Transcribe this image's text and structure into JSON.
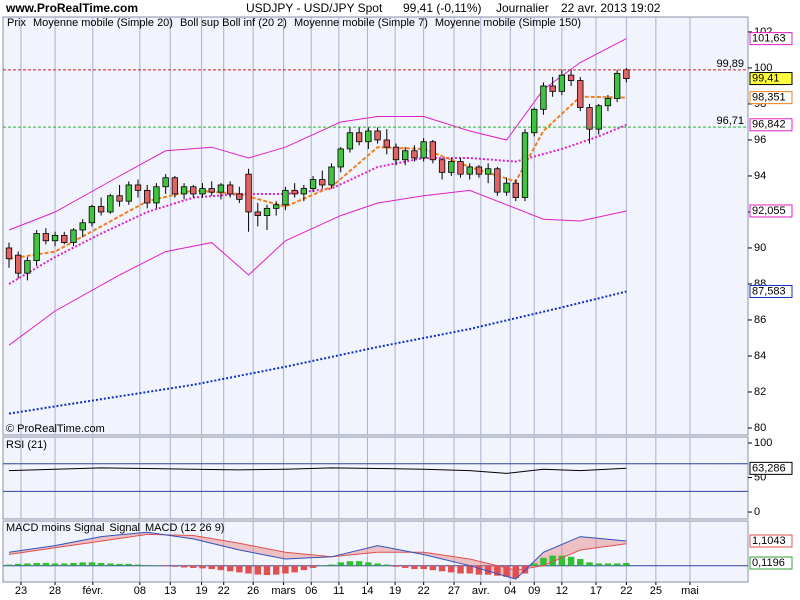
{
  "header": {
    "site": "www.ProRealTime.com",
    "symbol": "USDJPY - USD/JPY Spot",
    "quote": "99,41 (-0,11%)",
    "period": "Journalier",
    "datetime": "22 avr. 2013 19:02"
  },
  "chart_data": [
    {
      "type": "candlestick",
      "legend_label": "Prix",
      "copyright": "© ProRealTime.com",
      "up_color": "#3ec43e",
      "down_color": "#e06464",
      "xlim": [
        -0.65,
        80.2
      ],
      "ylim": [
        79.61,
        102.83
      ],
      "yticks": [
        80,
        82,
        84,
        86,
        88,
        90,
        92,
        94,
        96,
        98,
        100,
        102
      ],
      "ohlc": [
        [
          90.0,
          90.3,
          88.9,
          89.4
        ],
        [
          89.6,
          89.8,
          88.3,
          88.6
        ],
        [
          88.6,
          89.5,
          88.2,
          89.3
        ],
        [
          89.3,
          91.0,
          89.0,
          90.8
        ],
        [
          90.8,
          91.1,
          90.2,
          90.4
        ],
        [
          90.4,
          90.9,
          90.1,
          90.7
        ],
        [
          90.7,
          90.9,
          90.2,
          90.3
        ],
        [
          90.3,
          91.1,
          90.1,
          91.0
        ],
        [
          91.0,
          91.6,
          90.6,
          91.4
        ],
        [
          91.4,
          92.4,
          91.2,
          92.3
        ],
        [
          92.3,
          92.8,
          91.8,
          92.0
        ],
        [
          92.0,
          93.0,
          91.9,
          92.9
        ],
        [
          92.9,
          93.5,
          92.3,
          92.6
        ],
        [
          92.6,
          93.7,
          92.4,
          93.5
        ],
        [
          93.5,
          93.8,
          92.8,
          93.2
        ],
        [
          93.2,
          93.5,
          92.2,
          92.5
        ],
        [
          92.5,
          93.6,
          92.2,
          93.4
        ],
        [
          93.4,
          94.1,
          93.0,
          93.9
        ],
        [
          93.9,
          94.0,
          92.8,
          93.0
        ],
        [
          93.0,
          93.6,
          92.7,
          93.4
        ],
        [
          93.4,
          93.5,
          92.8,
          93.0
        ],
        [
          93.0,
          93.6,
          92.8,
          93.3
        ],
        [
          93.3,
          93.7,
          92.9,
          93.1
        ],
        [
          93.1,
          93.6,
          92.7,
          93.5
        ],
        [
          93.5,
          93.7,
          92.8,
          93.0
        ],
        [
          93.0,
          93.4,
          92.5,
          92.7
        ],
        [
          94.1,
          94.4,
          90.9,
          92.0
        ],
        [
          92.0,
          92.5,
          91.2,
          91.8
        ],
        [
          91.8,
          92.4,
          91.0,
          92.2
        ],
        [
          92.2,
          92.6,
          91.8,
          92.4
        ],
        [
          92.4,
          93.4,
          92.1,
          93.2
        ],
        [
          93.2,
          93.6,
          92.8,
          93.0
        ],
        [
          93.0,
          93.5,
          92.6,
          93.3
        ],
        [
          93.3,
          94.0,
          93.1,
          93.8
        ],
        [
          93.8,
          94.3,
          93.3,
          93.5
        ],
        [
          93.5,
          94.7,
          93.3,
          94.5
        ],
        [
          94.5,
          95.6,
          94.2,
          95.5
        ],
        [
          95.5,
          96.7,
          95.3,
          96.4
        ],
        [
          96.4,
          96.7,
          95.7,
          95.9
        ],
        [
          95.9,
          96.7,
          95.5,
          96.5
        ],
        [
          96.5,
          96.7,
          95.8,
          96.0
        ],
        [
          96.0,
          96.6,
          95.2,
          95.6
        ],
        [
          95.6,
          95.8,
          94.6,
          94.9
        ],
        [
          94.9,
          95.6,
          94.6,
          95.4
        ],
        [
          95.4,
          95.7,
          94.8,
          95.0
        ],
        [
          95.0,
          96.1,
          94.8,
          95.9
        ],
        [
          95.9,
          96.0,
          94.7,
          94.9
        ],
        [
          94.9,
          95.0,
          93.8,
          94.2
        ],
        [
          94.2,
          95.0,
          94.0,
          94.8
        ],
        [
          94.8,
          95.0,
          93.9,
          94.1
        ],
        [
          94.1,
          94.7,
          93.8,
          94.5
        ],
        [
          94.5,
          94.6,
          93.9,
          94.1
        ],
        [
          94.1,
          94.7,
          93.6,
          94.4
        ],
        [
          94.4,
          94.5,
          92.9,
          93.1
        ],
        [
          93.1,
          93.9,
          92.9,
          93.6
        ],
        [
          93.6,
          93.8,
          92.6,
          92.8
        ],
        [
          92.8,
          96.6,
          92.6,
          96.4
        ],
        [
          96.4,
          97.8,
          96.2,
          97.7
        ],
        [
          97.7,
          99.2,
          97.4,
          99.0
        ],
        [
          99.0,
          99.5,
          98.4,
          98.7
        ],
        [
          98.7,
          99.9,
          98.5,
          99.6
        ],
        [
          99.6,
          99.9,
          99.0,
          99.3
        ],
        [
          99.3,
          99.5,
          97.6,
          97.8
        ],
        [
          97.8,
          98.0,
          95.8,
          96.6
        ],
        [
          96.6,
          98.0,
          96.3,
          97.9
        ],
        [
          97.9,
          98.5,
          97.6,
          98.3
        ],
        [
          98.3,
          99.9,
          98.1,
          99.7
        ],
        [
          99.9,
          100.0,
          99.2,
          99.41
        ]
      ],
      "series": [
        {
          "name": "Moyenne mobile (Simple 20)",
          "color": "#e020c8",
          "style": "dotted",
          "x": [
            0,
            5,
            10,
            15,
            20,
            25,
            30,
            35,
            40,
            45,
            50,
            55,
            60,
            64,
            67
          ],
          "values": [
            88.0,
            89.5,
            90.8,
            92.0,
            92.8,
            93.0,
            93.0,
            93.3,
            94.5,
            95.0,
            95.0,
            94.8,
            95.5,
            96.2,
            96.842
          ]
        },
        {
          "name": "Boll sup Boll inf (20 2)",
          "color": "#e020c8",
          "style": "solid",
          "x": [
            0,
            5,
            12,
            17,
            22,
            26,
            30,
            36,
            40,
            45,
            50,
            54,
            58,
            62,
            67
          ],
          "upper": [
            91.0,
            92.0,
            94.0,
            95.4,
            95.6,
            95.0,
            95.6,
            97.0,
            97.3,
            97.3,
            96.5,
            96.0,
            98.8,
            100.3,
            101.63
          ],
          "lower": [
            84.6,
            86.5,
            88.5,
            89.8,
            90.3,
            88.5,
            90.4,
            91.8,
            92.5,
            92.9,
            93.2,
            92.4,
            91.6,
            91.5,
            92.055
          ]
        },
        {
          "name": "Moyenne mobile (Simple 7)",
          "color": "#f08020",
          "style": "dashed",
          "x": [
            0,
            5,
            10,
            15,
            20,
            25,
            30,
            35,
            40,
            45,
            50,
            55,
            58,
            62,
            67
          ],
          "values": [
            89.4,
            89.8,
            91.2,
            92.6,
            93.2,
            93.0,
            92.3,
            93.4,
            95.6,
            95.5,
            94.5,
            93.7,
            96.5,
            98.4,
            98.351
          ]
        },
        {
          "name": "Moyenne mobile (Simple 150)",
          "color": "#1030c0",
          "style": "dotted",
          "x": [
            0,
            10,
            20,
            30,
            40,
            50,
            60,
            67
          ],
          "values": [
            80.8,
            81.6,
            82.4,
            83.4,
            84.5,
            85.5,
            86.7,
            87.583
          ]
        }
      ],
      "levels": [
        {
          "value": 99.89,
          "label": "99,89",
          "color": "#d02020"
        },
        {
          "value": 96.71,
          "label": "96,71",
          "color": "#30b030"
        }
      ],
      "last_labels": [
        {
          "value": 101.63,
          "label": "101,63",
          "color": "#e020c8",
          "bg": "#ffffff"
        },
        {
          "value": 99.41,
          "label": "99,41",
          "color": "#000000",
          "bg": "#ffff40"
        },
        {
          "value": 98.351,
          "label": "98,351",
          "color": "#f08020",
          "bg": "#ffffff"
        },
        {
          "value": 96.842,
          "label": "96,842",
          "color": "#e020c8",
          "bg": "#ffffff"
        },
        {
          "value": 92.055,
          "label": "92,055",
          "color": "#e020c8",
          "bg": "#ffffff"
        },
        {
          "value": 87.583,
          "label": "87,583",
          "color": "#1030c0",
          "bg": "#ffffff"
        }
      ]
    },
    {
      "type": "line",
      "title": "RSI (21)",
      "color": "#000000",
      "xlim": [
        -0.65,
        80.2
      ],
      "ylim": [
        -10.1,
        108.7
      ],
      "yticks": [
        0,
        50,
        100
      ],
      "levels": [
        30,
        70
      ],
      "x": [
        0,
        5,
        10,
        15,
        20,
        25,
        30,
        35,
        40,
        45,
        50,
        54,
        58,
        62,
        67
      ],
      "values": [
        60,
        62,
        64,
        63,
        62,
        61,
        62,
        64,
        63,
        62,
        60,
        56,
        62,
        60,
        63.286
      ],
      "last_label": {
        "value": 63.286,
        "label": "63,286"
      }
    },
    {
      "type": "macd",
      "xlim": [
        -0.65,
        80.2
      ],
      "ylim": [
        -0.73,
        2.0
      ],
      "histogram": {
        "name": "MACD moins Signal",
        "up_color": "#30c030",
        "down_color": "#e05050",
        "values": [
          0.05,
          0.08,
          0.1,
          0.12,
          0.12,
          0.1,
          0.1,
          0.12,
          0.15,
          0.15,
          0.12,
          0.1,
          0.08,
          0.08,
          0.05,
          0.02,
          0.0,
          -0.02,
          -0.05,
          -0.08,
          -0.1,
          -0.12,
          -0.15,
          -0.2,
          -0.25,
          -0.3,
          -0.35,
          -0.4,
          -0.42,
          -0.4,
          -0.35,
          -0.3,
          -0.2,
          -0.1,
          0.0,
          0.05,
          0.15,
          0.2,
          0.2,
          0.15,
          0.1,
          0.05,
          -0.05,
          -0.1,
          -0.15,
          -0.15,
          -0.2,
          -0.25,
          -0.3,
          -0.35,
          -0.35,
          -0.4,
          -0.4,
          -0.45,
          -0.5,
          -0.55,
          -0.35,
          0.1,
          0.35,
          0.45,
          0.45,
          0.4,
          0.3,
          0.15,
          0.1,
          0.1,
          0.1,
          0.1196
        ]
      },
      "series": [
        {
          "name": "Signal",
          "color": "#e05050",
          "x": [
            0,
            5,
            10,
            15,
            20,
            25,
            30,
            35,
            40,
            45,
            50,
            55,
            58,
            62,
            67
          ],
          "values": [
            0.5,
            0.8,
            1.1,
            1.4,
            1.35,
            1.0,
            0.6,
            0.4,
            0.6,
            0.6,
            0.3,
            -0.2,
            0.0,
            0.7,
            0.985
          ]
        },
        {
          "name": "MACD (12 26 9)",
          "color": "#3050c0",
          "x": [
            0,
            5,
            10,
            15,
            20,
            25,
            30,
            35,
            40,
            45,
            50,
            55,
            58,
            62,
            67
          ],
          "values": [
            0.6,
            0.9,
            1.3,
            1.5,
            1.2,
            0.7,
            0.3,
            0.4,
            0.9,
            0.5,
            0.0,
            -0.6,
            0.6,
            1.3,
            1.1043
          ]
        }
      ],
      "last_labels": [
        {
          "value": 1.1043,
          "label": "1,1043",
          "color": "#e05050"
        },
        {
          "value": 0.1196,
          "label": "0,1196",
          "color": "#30a030"
        }
      ],
      "xticks": [
        {
          "value": 1.3,
          "label": "23"
        },
        {
          "value": 5.0,
          "label": "28"
        },
        {
          "value": 9.1,
          "label": "févr."
        },
        {
          "value": 14.2,
          "label": "08"
        },
        {
          "value": 17.5,
          "label": "13"
        },
        {
          "value": 20.9,
          "label": "19"
        },
        {
          "value": 23.3,
          "label": "22"
        },
        {
          "value": 26.5,
          "label": "26"
        },
        {
          "value": 29.8,
          "label": "mars"
        },
        {
          "value": 32.8,
          "label": "06"
        },
        {
          "value": 35.8,
          "label": "11"
        },
        {
          "value": 38.9,
          "label": "14"
        },
        {
          "value": 41.9,
          "label": "19"
        },
        {
          "value": 45.0,
          "label": "22"
        },
        {
          "value": 48.3,
          "label": "27"
        },
        {
          "value": 51.2,
          "label": "avr."
        },
        {
          "value": 54.4,
          "label": "04"
        },
        {
          "value": 57.0,
          "label": "09"
        },
        {
          "value": 60.0,
          "label": "12"
        },
        {
          "value": 63.7,
          "label": "17"
        },
        {
          "value": 67.0,
          "label": "22"
        },
        {
          "value": 70.2,
          "label": "25"
        },
        {
          "value": 73.9,
          "label": "mai"
        }
      ]
    }
  ]
}
